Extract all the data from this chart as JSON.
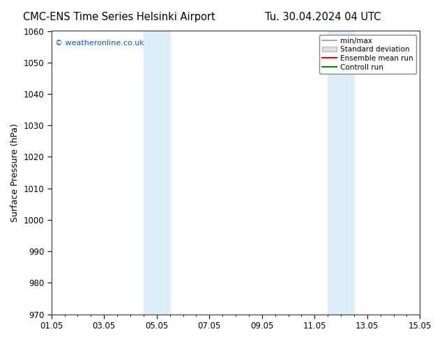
{
  "title_left": "CMC-ENS Time Series Helsinki Airport",
  "title_right": "Tu. 30.04.2024 04 UTC",
  "ylabel": "Surface Pressure (hPa)",
  "ylim": [
    970,
    1060
  ],
  "yticks": [
    970,
    980,
    990,
    1000,
    1010,
    1020,
    1030,
    1040,
    1050,
    1060
  ],
  "xlim": [
    0,
    14
  ],
  "xtick_labels": [
    "01.05",
    "03.05",
    "05.05",
    "07.05",
    "09.05",
    "11.05",
    "13.05",
    "15.05"
  ],
  "xtick_positions": [
    0,
    2,
    4,
    6,
    8,
    10,
    12,
    14
  ],
  "shade_bands": [
    {
      "x_start": 3.5,
      "x_end": 4.5
    },
    {
      "x_start": 10.5,
      "x_end": 11.5
    }
  ],
  "shade_color": "#ddeef8",
  "watermark": "© weatheronline.co.uk",
  "watermark_color": "#0055cc",
  "legend_items": [
    {
      "label": "min/max",
      "color": "#aaaaaa",
      "type": "hline"
    },
    {
      "label": "Standard deviation",
      "color": "#cccccc",
      "type": "band"
    },
    {
      "label": "Ensemble mean run",
      "color": "#ff0000",
      "type": "line"
    },
    {
      "label": "Controll run",
      "color": "#008800",
      "type": "line"
    }
  ],
  "background_color": "#ffffff",
  "title_fontsize": 10.5,
  "tick_fontsize": 8.5,
  "ylabel_fontsize": 9
}
